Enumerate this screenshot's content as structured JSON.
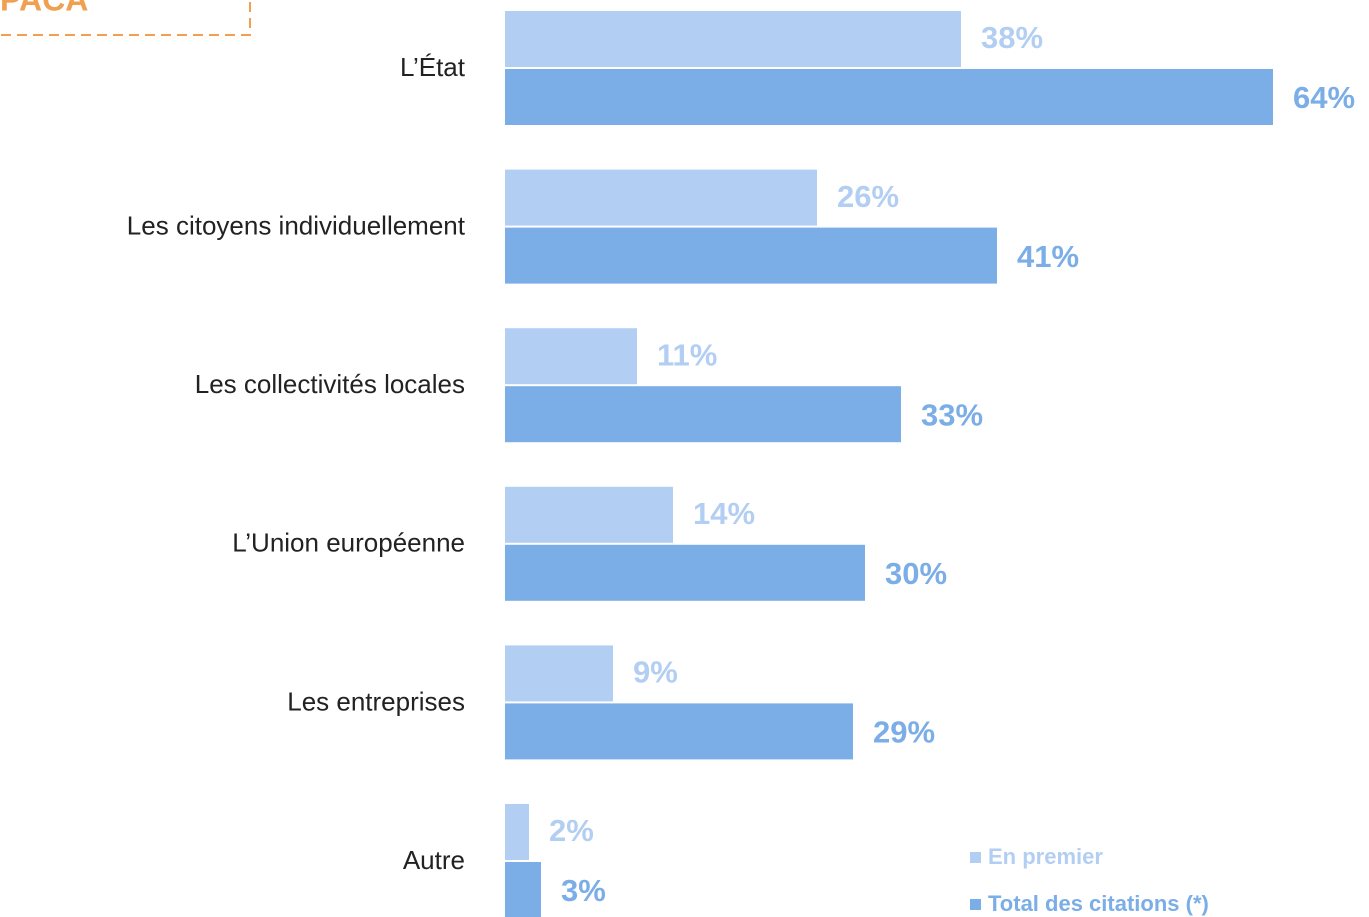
{
  "tag": "PACA",
  "chart_data": {
    "type": "bar",
    "orientation": "horizontal",
    "categories": [
      "L’État",
      "Les citoyens individuellement",
      "Les collectivités locales",
      "L’Union européenne",
      "Les entreprises",
      "Autre"
    ],
    "series": [
      {
        "name": "En premier",
        "color": "#b3cef3",
        "values": [
          38,
          26,
          11,
          14,
          9,
          2
        ],
        "value_labels": [
          "38%",
          "26%",
          "11%",
          "14%",
          "9%",
          "2%"
        ]
      },
      {
        "name": "Total des citations (*)",
        "color": "#7badE6",
        "values": [
          64,
          41,
          33,
          30,
          29,
          3
        ],
        "value_labels": [
          "64%",
          "41%",
          "33%",
          "30%",
          "29%",
          "3%"
        ]
      }
    ],
    "xlim": [
      0,
      72
    ],
    "legend": "bottom-right"
  }
}
